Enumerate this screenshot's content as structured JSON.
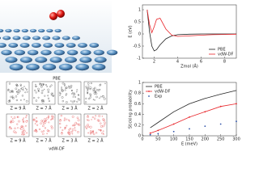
{
  "chart_data": [
    {
      "type": "line",
      "xlabel": "Zmol (Å)",
      "ylabel": "E (eV)",
      "x": [
        1.4,
        1.6,
        1.8,
        2.0,
        2.2,
        2.5,
        3,
        3.5,
        4,
        5,
        6,
        7,
        8,
        9
      ],
      "xlim": [
        1,
        9
      ],
      "xticks": [
        2,
        4,
        6,
        8
      ],
      "ylim": [
        -1,
        1.2
      ],
      "yticks": [
        -1,
        -0.5,
        0,
        0.5,
        1
      ],
      "legend": "lower right",
      "series": [
        {
          "name": "PBE",
          "color": "#222222",
          "values": [
            1.0,
            0.1,
            -0.5,
            -0.7,
            -0.65,
            -0.45,
            -0.2,
            -0.08,
            -0.03,
            -0.01,
            0,
            0,
            0,
            0
          ]
        },
        {
          "name": "vdW-DF",
          "color": "#e8262b",
          "values": [
            1.0,
            0.4,
            0.05,
            0.3,
            0.6,
            0.65,
            0.2,
            -0.05,
            -0.1,
            -0.08,
            -0.05,
            -0.03,
            -0.02,
            -0.01
          ]
        }
      ]
    },
    {
      "type": "line",
      "xlabel": "E (meV)",
      "ylabel": "Sticking probability",
      "x": [
        25,
        50,
        100,
        150,
        200,
        250,
        300
      ],
      "xlim": [
        0,
        300
      ],
      "xticks": [
        0,
        50,
        100,
        150,
        200,
        250,
        300
      ],
      "ylim": [
        0,
        1
      ],
      "yticks": [
        0,
        0.2,
        0.4,
        0.6,
        0.8,
        1
      ],
      "legend": "upper left",
      "series": [
        {
          "name": "PBE",
          "color": "#222222",
          "values": [
            0.15,
            0.25,
            0.45,
            0.6,
            0.7,
            0.78,
            0.85
          ]
        },
        {
          "name": "vdW-DF",
          "color": "#e8262b",
          "marker": true,
          "values": [
            0.05,
            0.1,
            0.22,
            0.35,
            0.45,
            0.55,
            0.6
          ]
        },
        {
          "name": "Exp",
          "color": "#2b4fa8",
          "marker": true,
          "line": false,
          "values": [
            0.02,
            0.04,
            0.08,
            0.13,
            0.18,
            0.22,
            0.27
          ]
        }
      ]
    }
  ],
  "density_panel": {
    "top_label": "PBE",
    "bottom_label": "vdW-DF",
    "z_labels": [
      "Z = 9 Å",
      "Z = 7 Å",
      "Z = 3 Å",
      "Z = 2 Å"
    ]
  }
}
